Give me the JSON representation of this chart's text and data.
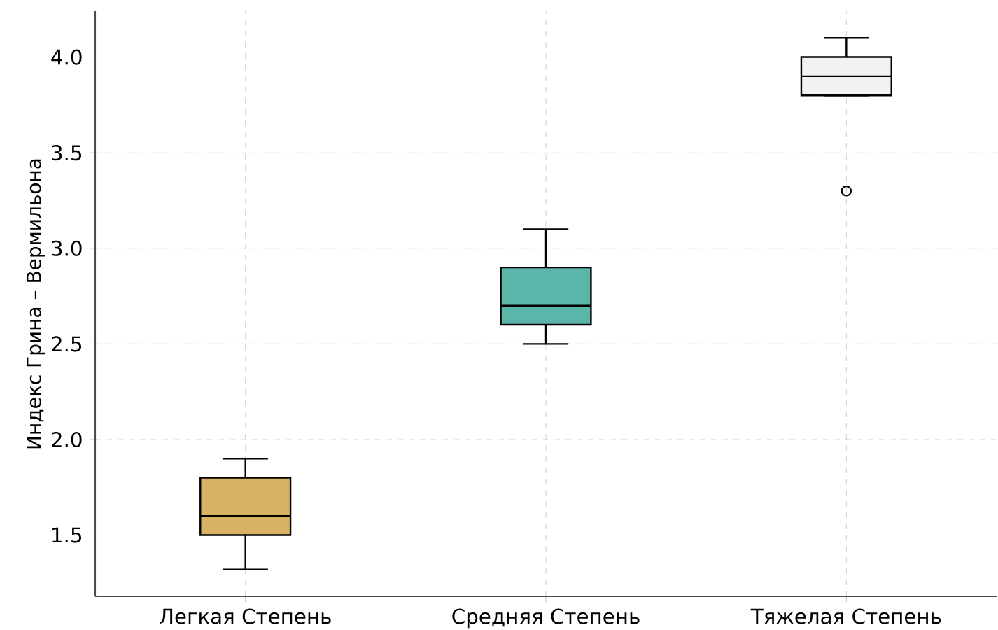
{
  "chart_data": {
    "type": "box",
    "ylabel": "Индекс Грина – Вермильона",
    "categories": [
      "Легкая Степень",
      "Средняя Степень",
      "Тяжелая Степень"
    ],
    "boxes": [
      {
        "low": 1.32,
        "q1": 1.5,
        "median": 1.6,
        "q3": 1.8,
        "high": 1.9
      },
      {
        "low": 2.5,
        "q1": 2.6,
        "median": 2.7,
        "q3": 2.9,
        "high": 3.1
      },
      {
        "low": 3.8,
        "q1": 3.8,
        "median": 3.9,
        "q3": 4.0,
        "high": 4.1,
        "outliers": [
          3.3
        ]
      }
    ],
    "colors": [
      "#d9b365",
      "#5bb5a8",
      "#f2f2f2"
    ],
    "ylim": [
      1.18,
      4.24
    ],
    "yticks": [
      {
        "value": 1.5,
        "label": "1.5"
      },
      {
        "value": 2.0,
        "label": "2.0"
      },
      {
        "value": 2.5,
        "label": "2.5"
      },
      {
        "value": 3.0,
        "label": "3.0"
      },
      {
        "value": 3.5,
        "label": "3.5"
      },
      {
        "value": 4.0,
        "label": "4.0"
      }
    ],
    "grid": true
  }
}
